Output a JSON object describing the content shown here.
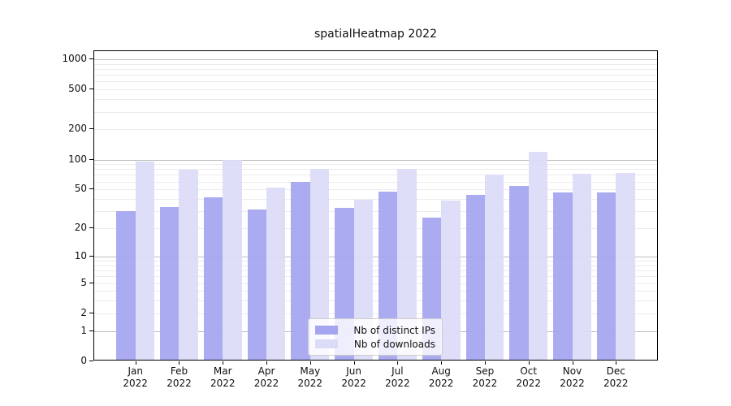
{
  "title": "spatialHeatmap 2022",
  "legend": {
    "items": [
      {
        "label": "Nb of distinct IPs",
        "color": "#a5a5f0"
      },
      {
        "label": "Nb of downloads",
        "color": "#dcdcf8"
      }
    ]
  },
  "colors": {
    "bar_distinct_ips": "#a5a5f0",
    "bar_downloads": "#dcdcf8",
    "grid_major": "#bdbdbd",
    "grid_minor": "#ececec",
    "spine": "#000000",
    "legend_border": "#cccccc",
    "text": "#111111"
  },
  "chart_data": {
    "type": "bar",
    "title": "spatialHeatmap 2022",
    "categories": [
      "Jan 2022",
      "Feb 2022",
      "Mar 2022",
      "Apr 2022",
      "May 2022",
      "Jun 2022",
      "Jul 2022",
      "Aug 2022",
      "Sep 2022",
      "Oct 2022",
      "Nov 2022",
      "Dec 2022"
    ],
    "series": [
      {
        "name": "Nb of distinct IPs",
        "color": "#a5a5f0",
        "values": [
          29,
          32,
          40,
          30,
          57,
          31,
          46,
          25,
          42,
          52,
          45,
          45
        ]
      },
      {
        "name": "Nb of downloads",
        "color": "#dcdcf8",
        "values": [
          92,
          76,
          95,
          50,
          78,
          38,
          77,
          37,
          68,
          115,
          69,
          70
        ]
      }
    ],
    "xlabel": "",
    "ylabel": "",
    "yscale": "symlog (position ~ ln(1+value))",
    "ylim": [
      0,
      1000
    ],
    "y_tick_values": [
      1000,
      500,
      200,
      100,
      50,
      20,
      10,
      5,
      2,
      1,
      0
    ],
    "y_tick_labels": [
      "1000",
      "500",
      "200",
      "100",
      "50",
      "20",
      "10",
      "5",
      "2",
      "1",
      "0"
    ],
    "grid": "horizontal; major lines at powers of 10, light minor log lines",
    "legend_position": "inside lower-center"
  }
}
